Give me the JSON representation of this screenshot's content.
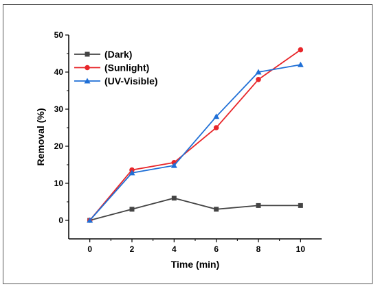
{
  "chart_data": {
    "type": "line",
    "xlabel": "Time (min)",
    "ylabel": "Removal (%)",
    "x": [
      0,
      2,
      4,
      6,
      8,
      10
    ],
    "xlim": [
      -1,
      11
    ],
    "ylim": [
      -5,
      50
    ],
    "xticks": [
      0,
      2,
      4,
      6,
      8,
      10
    ],
    "yticks": [
      0,
      10,
      20,
      30,
      40,
      50
    ],
    "grid": false,
    "legend_position": "top-left",
    "series": [
      {
        "name": "(Dark)",
        "values": [
          0,
          3,
          6,
          3,
          4,
          4
        ],
        "color": "#444444",
        "marker": "square"
      },
      {
        "name": "(Sunlight)",
        "values": [
          0,
          13.6,
          15.6,
          25,
          38,
          46
        ],
        "color": "#e8262a",
        "marker": "circle"
      },
      {
        "name": "(UV-Visible)",
        "values": [
          0,
          12.8,
          14.8,
          28,
          40,
          42
        ],
        "color": "#1f6fd6",
        "marker": "triangle"
      }
    ]
  }
}
